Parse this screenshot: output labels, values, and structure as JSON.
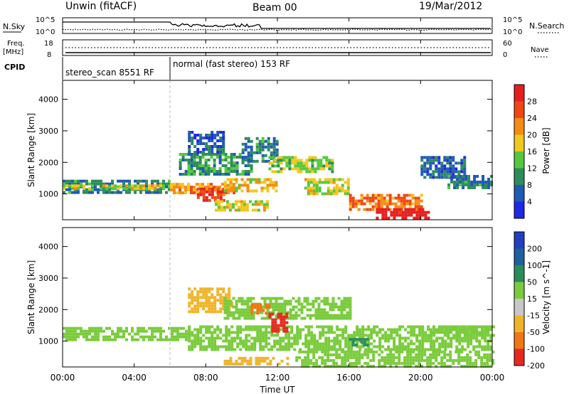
{
  "header": {
    "station": "Unwin (fitACF)",
    "beam": "Beam 00",
    "date": "19/Mar/2012"
  },
  "side_labels": {
    "nsky": "N.Sky",
    "nsearch": "N.Search",
    "freq": "Freq.",
    "freq_unit": "[MHz]",
    "nave": "Nave",
    "cpid": "CPID"
  },
  "noise_axis": {
    "left_top": "10^5",
    "left_bottom": "10^0",
    "right_top": "10^5",
    "right_bottom": "10^0"
  },
  "freq_axis": {
    "left_top": "18",
    "left_bottom": "8",
    "right_top": "60",
    "right_bottom": "0"
  },
  "cpid_segments": [
    {
      "label": "stereo_scan 8551 RF",
      "start_hour": 0,
      "end_hour": 6
    },
    {
      "label": "normal (fast stereo) 153 RF",
      "start_hour": 6,
      "end_hour": 24
    }
  ],
  "x_axis": {
    "label": "Time UT",
    "ticks": [
      "00:00",
      "04:00",
      "08:00",
      "12:00",
      "16:00",
      "20:00",
      "00:00"
    ],
    "range_hours": [
      0,
      24
    ]
  },
  "y_axis": {
    "label": "Slant Range [km]",
    "ticks": [
      "1000",
      "2000",
      "3000",
      "4000"
    ],
    "range_km": [
      180,
      4600
    ]
  },
  "colorbars": {
    "power": {
      "label": "Power [dB]",
      "ticks": [
        "4",
        "8",
        "12",
        "16",
        "20",
        "24",
        "28"
      ],
      "colors": [
        "#1e28e6",
        "#1e5ab4",
        "#2d8c5a",
        "#55c83c",
        "#f0c81e",
        "#f58c14",
        "#f04614",
        "#e61e1e"
      ]
    },
    "velocity": {
      "label": "Velocity [m s^-1]",
      "ticks": [
        "200",
        "100",
        "50",
        "15",
        "-15",
        "-50",
        "-100",
        "-200"
      ],
      "colors": [
        "#2040c0",
        "#2060a0",
        "#2a8c5a",
        "#7acc3c",
        "#c8c8c8",
        "#f0b428",
        "#f07814",
        "#e82820"
      ]
    }
  },
  "chart_data": [
    {
      "type": "heatmap",
      "title": "",
      "quantity": "Power",
      "xlabel": "Time UT",
      "ylabel": "Slant Range [km]",
      "xlim_hours": [
        0,
        24
      ],
      "ylim_km": [
        180,
        4600
      ],
      "colorscale_range": [
        0,
        30
      ],
      "regions": [
        {
          "t": [
            0.0,
            6.0
          ],
          "r": [
            1000,
            1450
          ],
          "value": 8
        },
        {
          "t": [
            0.0,
            6.0
          ],
          "r": [
            1150,
            1300
          ],
          "value": 16
        },
        {
          "t": [
            6.0,
            9.5
          ],
          "r": [
            1000,
            1350
          ],
          "value": 20
        },
        {
          "t": [
            7.5,
            9.0
          ],
          "r": [
            800,
            1200
          ],
          "value": 26
        },
        {
          "t": [
            9.0,
            12.0
          ],
          "r": [
            1100,
            1500
          ],
          "value": 18
        },
        {
          "t": [
            6.5,
            10.5
          ],
          "r": [
            1600,
            2300
          ],
          "value": 10
        },
        {
          "t": [
            7.0,
            9.0
          ],
          "r": [
            2300,
            3000
          ],
          "value": 6
        },
        {
          "t": [
            8.5,
            11.5
          ],
          "r": [
            500,
            800
          ],
          "value": 16
        },
        {
          "t": [
            10.0,
            12.0
          ],
          "r": [
            2000,
            2800
          ],
          "value": 8
        },
        {
          "t": [
            11.5,
            15.0
          ],
          "r": [
            1700,
            2200
          ],
          "value": 14
        },
        {
          "t": [
            13.5,
            16.0
          ],
          "r": [
            1000,
            1500
          ],
          "value": 16
        },
        {
          "t": [
            16.0,
            20.0
          ],
          "r": [
            500,
            1000
          ],
          "value": 22
        },
        {
          "t": [
            17.5,
            20.5
          ],
          "r": [
            250,
            550
          ],
          "value": 30
        },
        {
          "t": [
            20.0,
            22.5
          ],
          "r": [
            1500,
            2200
          ],
          "value": 6
        },
        {
          "t": [
            21.5,
            24.0
          ],
          "r": [
            1200,
            1600
          ],
          "value": 8
        }
      ]
    },
    {
      "type": "heatmap",
      "title": "",
      "quantity": "Velocity",
      "xlabel": "Time UT",
      "ylabel": "Slant Range [km]",
      "xlim_hours": [
        0,
        24
      ],
      "ylim_km": [
        180,
        4600
      ],
      "colorscale_range": [
        -200,
        200
      ],
      "regions": [
        {
          "t": [
            0.0,
            7.0
          ],
          "r": [
            1000,
            1450
          ],
          "value": 0
        },
        {
          "t": [
            7.0,
            24.0
          ],
          "r": [
            700,
            1500
          ],
          "value": 0
        },
        {
          "t": [
            7.0,
            9.5
          ],
          "r": [
            1900,
            2700
          ],
          "value": -60
        },
        {
          "t": [
            9.0,
            16.0
          ],
          "r": [
            1700,
            2400
          ],
          "value": 0
        },
        {
          "t": [
            11.5,
            12.5
          ],
          "r": [
            1300,
            1900
          ],
          "value": -220
        },
        {
          "t": [
            10.5,
            11.5
          ],
          "r": [
            1900,
            2200
          ],
          "value": -110
        },
        {
          "t": [
            9.0,
            12.5
          ],
          "r": [
            250,
            500
          ],
          "value": -70
        },
        {
          "t": [
            13.0,
            24.0
          ],
          "r": [
            200,
            700
          ],
          "value": 0
        },
        {
          "t": [
            16.0,
            17.0
          ],
          "r": [
            900,
            1100
          ],
          "value": 25
        },
        {
          "t": [
            20.5,
            24.0
          ],
          "r": [
            1200,
            1500
          ],
          "value": 0
        }
      ]
    }
  ]
}
